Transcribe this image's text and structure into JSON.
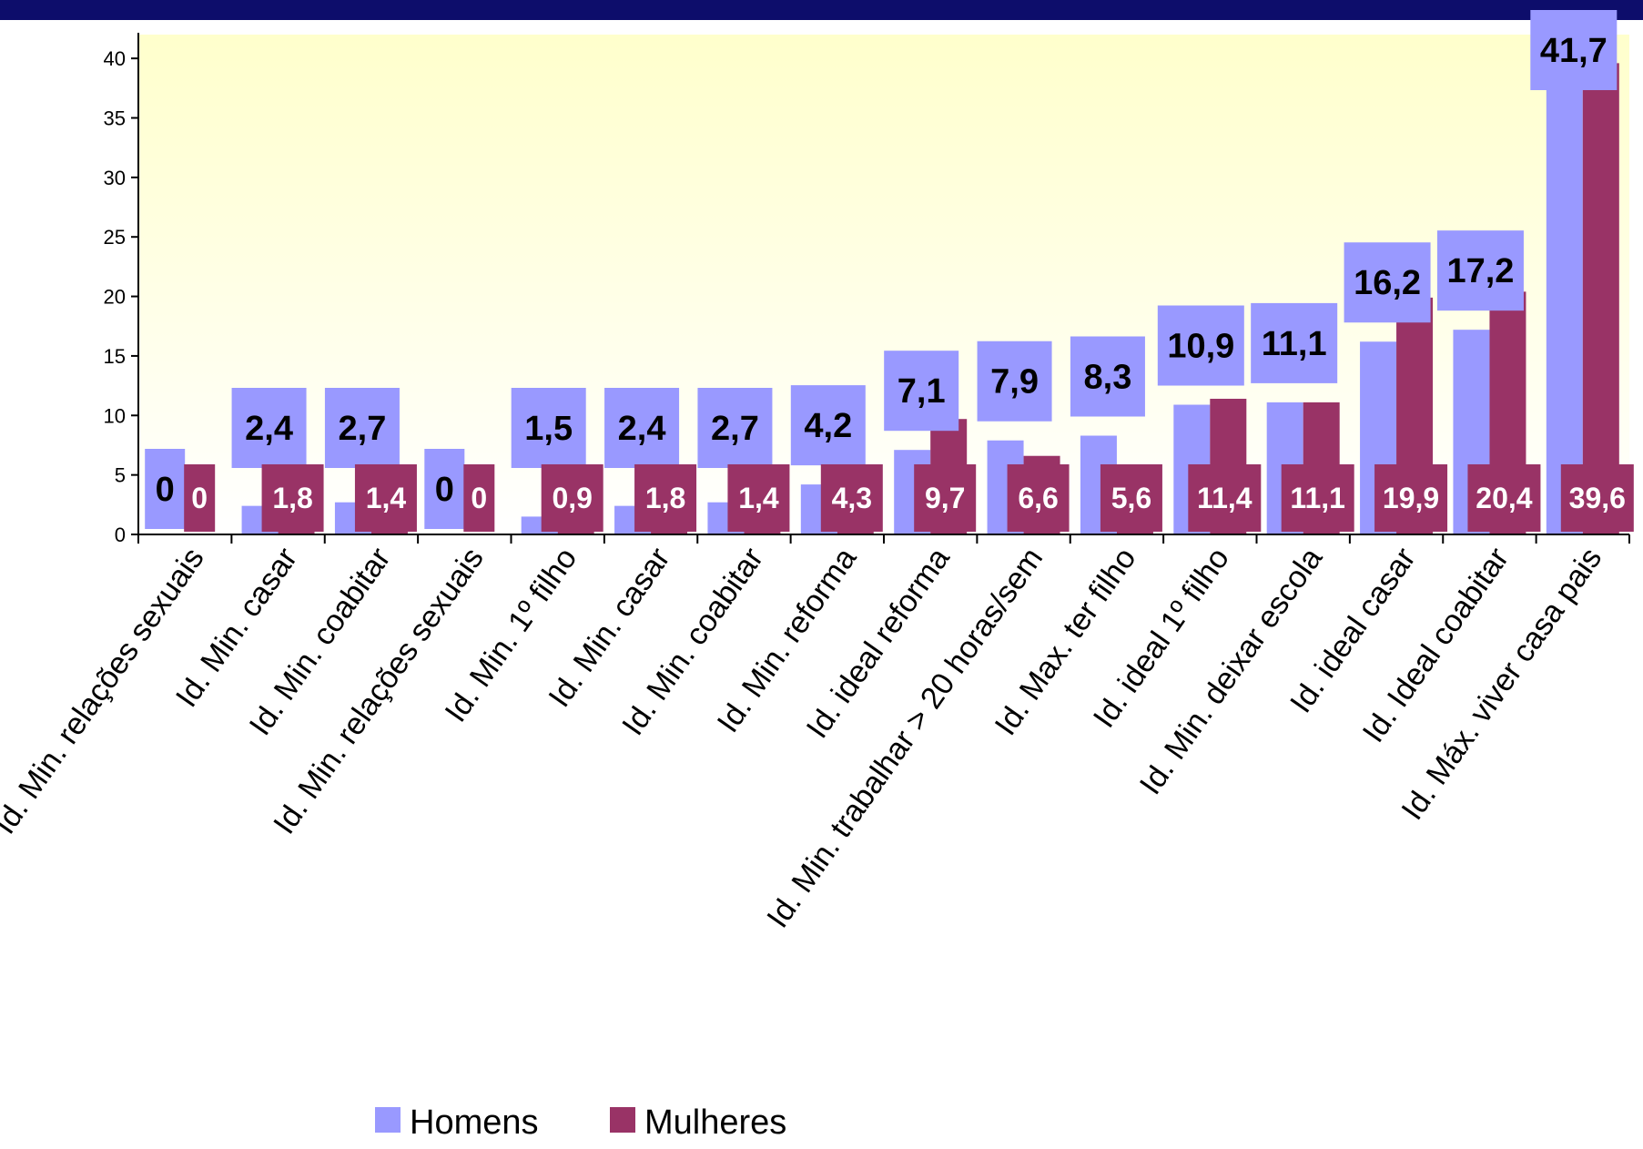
{
  "chart_data": {
    "type": "bar",
    "categories": [
      "Id. Min. relações sexuais",
      "Id. Min. casar",
      "Id. Min. coabitar",
      "Id. Min. relações sexuais",
      "Id. Min. 1º filho",
      "Id. Min. casar",
      "Id. Min. coabitar",
      "Id. Min. reforma",
      "Id. ideal reforma",
      "Id. Min. trabalhar > 20 horas/sem",
      "Id. Max. ter filho",
      "Id. ideal 1º filho",
      "Id. Min. deixar escola",
      "Id. ideal casar",
      "Id.  Ideal coabitar",
      "Id. Máx. viver casa pais"
    ],
    "series": [
      {
        "name": "Homens",
        "color": "#9999ff",
        "values": [
          0,
          2.4,
          2.7,
          0,
          1.5,
          2.4,
          2.7,
          4.2,
          7.1,
          7.9,
          8.3,
          10.9,
          11.1,
          16.2,
          17.2,
          41.7
        ],
        "labels": [
          "0",
          "2,4",
          "2,7",
          "0",
          "1,5",
          "2,4",
          "2,7",
          "4,2",
          "7,1",
          "7,9",
          "8,3",
          "10,9",
          "11,1",
          "16,2",
          "17,2",
          "41,7"
        ]
      },
      {
        "name": "Mulheres",
        "color": "#993366",
        "values": [
          0,
          1.8,
          1.4,
          0,
          0.9,
          1.8,
          1.4,
          4.3,
          9.7,
          6.6,
          5.6,
          11.4,
          11.1,
          19.9,
          20.4,
          39.6
        ],
        "labels": [
          "0",
          "1,8",
          "1,4",
          "0",
          "0,9",
          "1,8",
          "1,4",
          "4,3",
          "9,7",
          "6,6",
          "5,6",
          "11,4",
          "11,1",
          "19,9",
          "20,4",
          "39,6"
        ]
      }
    ],
    "yticks": [
      "0",
      "5",
      "10",
      "15",
      "20",
      "25",
      "30",
      "35",
      "40"
    ],
    "ylim": [
      0,
      42
    ],
    "grid": false,
    "legend": "bottom",
    "plot_background": "gradient light yellow",
    "title": "",
    "xlabel": "",
    "ylabel": ""
  }
}
